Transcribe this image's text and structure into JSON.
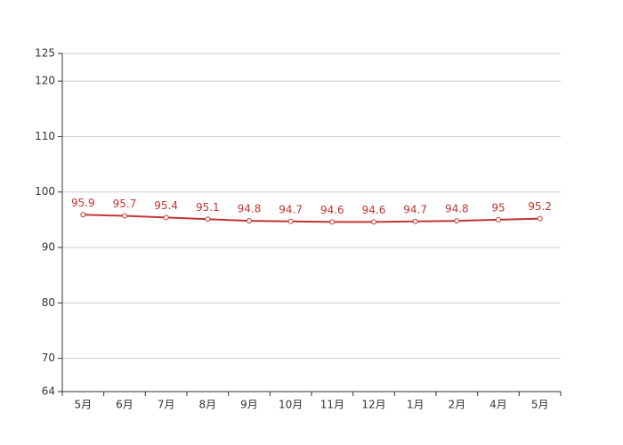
{
  "chart_data": {
    "type": "line",
    "categories": [
      "5月",
      "6月",
      "7月",
      "8月",
      "9月",
      "10月",
      "11月",
      "12月",
      "1月",
      "2月",
      "4月",
      "5月"
    ],
    "values": [
      95.9,
      95.7,
      95.4,
      95.1,
      94.8,
      94.7,
      94.6,
      94.6,
      94.7,
      94.8,
      95,
      95.2
    ],
    "color": "#c23531",
    "ylim": [
      64,
      125
    ],
    "yticks": [
      64,
      70,
      80,
      90,
      100,
      110,
      120,
      125
    ],
    "grid": true
  }
}
